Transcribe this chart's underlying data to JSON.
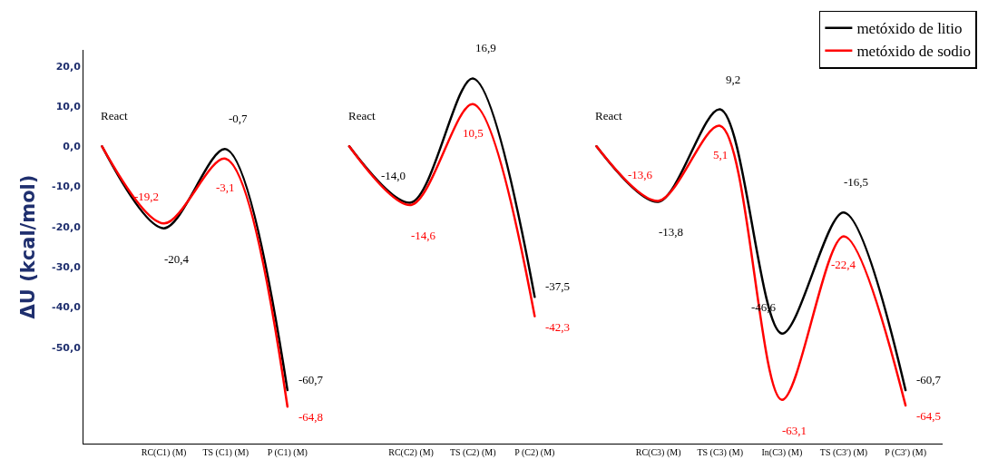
{
  "chart_data": {
    "type": "line",
    "ylabel": "ΔU (kcal/mol)",
    "categories": [
      null,
      "RC(C1) (M)",
      "TS (C1) (M)",
      "P (C1) (M)",
      null,
      "RC(C2) (M)",
      "TS (C2) (M)",
      "P (C2) (M)",
      null,
      "RC(C3) (M)",
      "TS (C3) (M)",
      "In(C3) (M)",
      "TS (C3') (M)",
      "P (C3') (M)"
    ],
    "series": [
      {
        "name": "metóxido de litio",
        "color": "#000000",
        "values": [
          0,
          -20.4,
          -0.7,
          -60.7,
          null,
          null,
          null,
          null,
          null,
          null,
          null,
          null,
          null,
          null
        ],
        "value_labels": [
          "React",
          "-20,4",
          "-0,7",
          "-60,7",
          null,
          null,
          null,
          null,
          null,
          null,
          null,
          null,
          null,
          null
        ]
      },
      {
        "name": "metóxido de sodio",
        "color": "#ff0000",
        "values": [
          0,
          -19.2,
          -3.1,
          -64.8,
          null,
          null,
          null,
          null,
          null,
          null,
          null,
          null,
          null,
          null
        ],
        "value_labels": [
          null,
          "-19,2",
          "-3,1",
          "-64,8",
          null,
          null,
          null,
          null,
          null,
          null,
          null,
          null,
          null,
          null
        ]
      },
      {
        "color": "#000000",
        "values": [
          null,
          null,
          null,
          null,
          0,
          -14.0,
          16.9,
          -37.5,
          null,
          null,
          null,
          null,
          null,
          null
        ],
        "value_labels": [
          null,
          null,
          null,
          null,
          "React",
          "-14,0",
          "16,9",
          "-37,5",
          null,
          null,
          null,
          null,
          null,
          null
        ]
      },
      {
        "color": "#ff0000",
        "values": [
          null,
          null,
          null,
          null,
          0,
          -14.6,
          10.5,
          -42.3,
          null,
          null,
          null,
          null,
          null,
          null
        ],
        "value_labels": [
          null,
          null,
          null,
          null,
          null,
          "-14,6",
          "10,5",
          "-42,3",
          null,
          null,
          null,
          null,
          null,
          null
        ]
      },
      {
        "color": "#000000",
        "values": [
          null,
          null,
          null,
          null,
          null,
          null,
          null,
          null,
          0,
          -13.8,
          9.2,
          -46.6,
          -16.5,
          -60.7
        ],
        "value_labels": [
          null,
          null,
          null,
          null,
          null,
          null,
          null,
          null,
          "React",
          "-13,8",
          "9,2",
          "-46,6",
          "-16,5",
          "-60,7"
        ]
      },
      {
        "color": "#ff0000",
        "values": [
          null,
          null,
          null,
          null,
          null,
          null,
          null,
          null,
          0,
          -13.6,
          5.1,
          -63.1,
          -22.4,
          -64.5
        ],
        "value_labels": [
          null,
          null,
          null,
          null,
          null,
          null,
          null,
          null,
          null,
          "-13,6",
          "5,1",
          "-63,1",
          "-22,4",
          "-64,5"
        ]
      }
    ],
    "ylim": [
      -74,
      24
    ],
    "yticks": [
      {
        "value": 20,
        "label": "20,0"
      },
      {
        "value": 10,
        "label": "10,0"
      },
      {
        "value": 0,
        "label": "0,0"
      },
      {
        "value": -10,
        "label": "-10,0"
      },
      {
        "value": -20,
        "label": "-20,0"
      },
      {
        "value": -30,
        "label": "-30,0"
      },
      {
        "value": -40,
        "label": "-40,0"
      },
      {
        "value": -50,
        "label": "-50,0"
      }
    ],
    "grid": false,
    "legend": "top right",
    "marker": "none",
    "line_style": "solid"
  }
}
